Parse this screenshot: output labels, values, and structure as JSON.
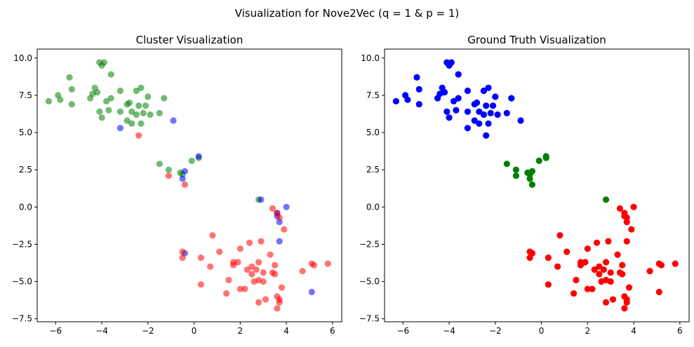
{
  "figure": {
    "suptitle": "Visualization for Nove2Vec (q = 1 & p = 1)"
  },
  "colors": {
    "red": "#ff0000",
    "green": "#008000",
    "blue": "#0000ff",
    "axis": "#000000",
    "background": "#ffffff"
  },
  "chart_data": [
    {
      "type": "scatter",
      "title": "Cluster Visualization",
      "xlabel": "",
      "ylabel": "",
      "xlim": [
        -6.8,
        6.4
      ],
      "ylim": [
        -7.7,
        10.6
      ],
      "xticks": [
        -6,
        -4,
        -2,
        0,
        2,
        4,
        6
      ],
      "xtick_labels": [
        "−6",
        "−4",
        "−2",
        "0",
        "2",
        "4",
        "6"
      ],
      "yticks": [
        -7.5,
        -5.0,
        -2.5,
        0.0,
        2.5,
        5.0,
        7.5,
        10.0
      ],
      "ytick_labels": [
        "−7.5",
        "−5.0",
        "−2.5",
        "0.0",
        "2.5",
        "5.0",
        "7.5",
        "10.0"
      ],
      "grid": false,
      "marker_alpha": 0.55,
      "series": [
        {
          "color": "green",
          "points": [
            [
              -6.3,
              7.1
            ],
            [
              -5.9,
              7.5
            ],
            [
              -5.8,
              7.2
            ],
            [
              -5.4,
              8.7
            ],
            [
              -5.3,
              7.9
            ],
            [
              -5.3,
              6.9
            ],
            [
              -4.5,
              7.3
            ],
            [
              -4.4,
              7.6
            ],
            [
              -4.3,
              8.0
            ],
            [
              -4.2,
              7.7
            ],
            [
              -4.1,
              6.4
            ],
            [
              -4.0,
              6.0
            ],
            [
              -4.1,
              9.7
            ],
            [
              -4.0,
              9.5
            ],
            [
              -3.9,
              9.7
            ],
            [
              -3.8,
              7.1
            ],
            [
              -3.7,
              6.5
            ],
            [
              -3.6,
              7.3
            ],
            [
              -3.6,
              8.9
            ],
            [
              -3.2,
              7.8
            ],
            [
              -3.2,
              6.4
            ],
            [
              -2.9,
              6.9
            ],
            [
              -2.9,
              5.8
            ],
            [
              -2.8,
              7.0
            ],
            [
              -2.7,
              6.4
            ],
            [
              -2.7,
              5.6
            ],
            [
              -2.5,
              7.8
            ],
            [
              -2.5,
              6.2
            ],
            [
              -2.4,
              6.8
            ],
            [
              -2.3,
              8.0
            ],
            [
              -2.2,
              6.3
            ],
            [
              -2.1,
              6.8
            ],
            [
              -2.0,
              7.4
            ],
            [
              -1.9,
              6.2
            ],
            [
              -1.5,
              6.3
            ],
            [
              -1.3,
              7.3
            ],
            [
              -2.3,
              5.6
            ],
            [
              -1.5,
              2.9
            ],
            [
              -1.1,
              2.5
            ],
            [
              -0.6,
              2.3
            ],
            [
              -0.5,
              2.2
            ],
            [
              -0.1,
              3.1
            ],
            [
              0.2,
              3.3
            ],
            [
              2.8,
              0.5
            ]
          ]
        },
        {
          "color": "blue",
          "points": [
            [
              -3.2,
              5.3
            ],
            [
              -0.9,
              5.8
            ],
            [
              0.2,
              3.4
            ],
            [
              -0.4,
              2.4
            ],
            [
              -0.5,
              1.9
            ],
            [
              -0.4,
              -3.1
            ],
            [
              2.9,
              0.5
            ],
            [
              3.6,
              -0.4
            ],
            [
              3.6,
              -0.6
            ],
            [
              4.0,
              0.0
            ],
            [
              3.7,
              -1.0
            ],
            [
              3.7,
              -2.3
            ],
            [
              5.1,
              -5.7
            ]
          ]
        },
        {
          "color": "red",
          "points": [
            [
              -2.4,
              4.8
            ],
            [
              -1.1,
              2.1
            ],
            [
              -0.4,
              1.5
            ],
            [
              -0.5,
              -3.0
            ],
            [
              -0.5,
              -3.4
            ],
            [
              0.3,
              -3.4
            ],
            [
              0.3,
              -5.2
            ],
            [
              0.7,
              -4.0
            ],
            [
              0.8,
              -1.9
            ],
            [
              1.1,
              -3.0
            ],
            [
              1.4,
              -5.8
            ],
            [
              1.5,
              -4.9
            ],
            [
              1.7,
              -3.7
            ],
            [
              1.7,
              -3.9
            ],
            [
              1.9,
              -3.7
            ],
            [
              2.0,
              -5.5
            ],
            [
              2.0,
              -2.8
            ],
            [
              2.2,
              -5.5
            ],
            [
              2.3,
              -4.2
            ],
            [
              2.4,
              -2.4
            ],
            [
              2.5,
              -4.5
            ],
            [
              2.5,
              -4.0
            ],
            [
              2.6,
              -5.0
            ],
            [
              2.7,
              -4.2
            ],
            [
              2.8,
              -3.7
            ],
            [
              2.8,
              -4.9
            ],
            [
              2.8,
              -6.4
            ],
            [
              2.9,
              -2.3
            ],
            [
              3.0,
              -4.4
            ],
            [
              3.0,
              -5.0
            ],
            [
              3.1,
              -6.2
            ],
            [
              3.3,
              -3.2
            ],
            [
              3.4,
              -4.4
            ],
            [
              3.4,
              -0.1
            ],
            [
              3.5,
              -3.9
            ],
            [
              3.5,
              -4.5
            ],
            [
              3.6,
              -0.4
            ],
            [
              3.6,
              -6.0
            ],
            [
              3.6,
              -6.8
            ],
            [
              3.7,
              -6.2
            ],
            [
              3.7,
              -6.4
            ],
            [
              3.7,
              -0.7
            ],
            [
              3.8,
              -5.4
            ],
            [
              3.9,
              -1.5
            ],
            [
              4.7,
              -4.3
            ],
            [
              5.1,
              -3.8
            ],
            [
              5.2,
              -3.9
            ],
            [
              5.8,
              -3.8
            ]
          ]
        }
      ]
    },
    {
      "type": "scatter",
      "title": "Ground Truth Visualization",
      "xlabel": "",
      "ylabel": "",
      "xlim": [
        -6.8,
        6.4
      ],
      "ylim": [
        -7.7,
        10.6
      ],
      "xticks": [
        -6,
        -4,
        -2,
        0,
        2,
        4,
        6
      ],
      "xtick_labels": [
        "−6",
        "−4",
        "−2",
        "0",
        "2",
        "4",
        "6"
      ],
      "yticks": [
        -7.5,
        -5.0,
        -2.5,
        0.0,
        2.5,
        5.0,
        7.5,
        10.0
      ],
      "ytick_labels": [
        "−7.5",
        "−5.0",
        "−2.5",
        "0.0",
        "2.5",
        "5.0",
        "7.5",
        "10.0"
      ],
      "grid": false,
      "marker_alpha": 1.0,
      "series": [
        {
          "color": "blue",
          "points": [
            [
              -6.3,
              7.1
            ],
            [
              -5.9,
              7.5
            ],
            [
              -5.8,
              7.2
            ],
            [
              -5.4,
              8.7
            ],
            [
              -5.3,
              7.9
            ],
            [
              -5.3,
              6.9
            ],
            [
              -4.5,
              7.3
            ],
            [
              -4.4,
              7.6
            ],
            [
              -4.3,
              8.0
            ],
            [
              -4.2,
              7.7
            ],
            [
              -4.1,
              6.4
            ],
            [
              -4.0,
              6.0
            ],
            [
              -4.1,
              9.7
            ],
            [
              -4.0,
              9.5
            ],
            [
              -3.9,
              9.7
            ],
            [
              -3.8,
              7.1
            ],
            [
              -3.7,
              6.5
            ],
            [
              -3.6,
              7.3
            ],
            [
              -3.6,
              8.9
            ],
            [
              -3.2,
              7.8
            ],
            [
              -3.2,
              6.4
            ],
            [
              -2.9,
              6.9
            ],
            [
              -2.9,
              5.8
            ],
            [
              -2.8,
              7.0
            ],
            [
              -2.7,
              6.4
            ],
            [
              -2.7,
              5.6
            ],
            [
              -2.5,
              7.8
            ],
            [
              -2.5,
              6.2
            ],
            [
              -2.4,
              6.8
            ],
            [
              -2.3,
              8.0
            ],
            [
              -2.2,
              6.3
            ],
            [
              -2.1,
              6.8
            ],
            [
              -2.0,
              7.4
            ],
            [
              -1.9,
              6.2
            ],
            [
              -1.5,
              6.3
            ],
            [
              -1.3,
              7.3
            ],
            [
              -2.3,
              5.6
            ],
            [
              -3.2,
              5.3
            ],
            [
              -0.9,
              5.8
            ],
            [
              -2.4,
              4.8
            ]
          ]
        },
        {
          "color": "green",
          "points": [
            [
              -1.5,
              2.9
            ],
            [
              -1.1,
              2.5
            ],
            [
              -1.1,
              2.1
            ],
            [
              -0.6,
              2.3
            ],
            [
              -0.5,
              2.2
            ],
            [
              -0.5,
              1.9
            ],
            [
              -0.4,
              2.4
            ],
            [
              -0.4,
              1.5
            ],
            [
              -0.1,
              3.1
            ],
            [
              0.2,
              3.3
            ],
            [
              0.2,
              3.4
            ],
            [
              2.8,
              0.5
            ]
          ]
        },
        {
          "color": "red",
          "points": [
            [
              -0.5,
              -3.0
            ],
            [
              -0.5,
              -3.4
            ],
            [
              -0.4,
              -3.1
            ],
            [
              0.3,
              -3.4
            ],
            [
              0.3,
              -5.2
            ],
            [
              0.7,
              -4.0
            ],
            [
              0.8,
              -1.9
            ],
            [
              1.1,
              -3.0
            ],
            [
              1.4,
              -5.8
            ],
            [
              1.5,
              -4.9
            ],
            [
              1.7,
              -3.7
            ],
            [
              1.7,
              -3.9
            ],
            [
              1.9,
              -3.7
            ],
            [
              2.0,
              -5.5
            ],
            [
              2.0,
              -2.8
            ],
            [
              2.2,
              -5.5
            ],
            [
              2.3,
              -4.2
            ],
            [
              2.4,
              -2.4
            ],
            [
              2.5,
              -4.5
            ],
            [
              2.5,
              -4.0
            ],
            [
              2.6,
              -5.0
            ],
            [
              2.7,
              -4.2
            ],
            [
              2.8,
              -3.7
            ],
            [
              2.8,
              -4.9
            ],
            [
              2.8,
              -6.4
            ],
            [
              2.9,
              -2.3
            ],
            [
              3.0,
              -4.4
            ],
            [
              3.0,
              -5.0
            ],
            [
              3.1,
              -6.2
            ],
            [
              3.3,
              -3.2
            ],
            [
              3.4,
              -4.4
            ],
            [
              3.4,
              -0.1
            ],
            [
              3.5,
              -3.9
            ],
            [
              3.5,
              -4.5
            ],
            [
              3.6,
              -0.4
            ],
            [
              3.6,
              -0.6
            ],
            [
              3.6,
              -6.0
            ],
            [
              3.6,
              -6.8
            ],
            [
              3.7,
              -6.2
            ],
            [
              3.7,
              -6.4
            ],
            [
              3.7,
              -0.7
            ],
            [
              3.7,
              -1.0
            ],
            [
              3.7,
              -2.3
            ],
            [
              3.8,
              -5.4
            ],
            [
              3.9,
              -1.5
            ],
            [
              4.0,
              0.0
            ],
            [
              4.7,
              -4.3
            ],
            [
              5.1,
              -3.8
            ],
            [
              5.1,
              -5.7
            ],
            [
              5.2,
              -3.9
            ],
            [
              5.8,
              -3.8
            ]
          ]
        }
      ]
    }
  ]
}
